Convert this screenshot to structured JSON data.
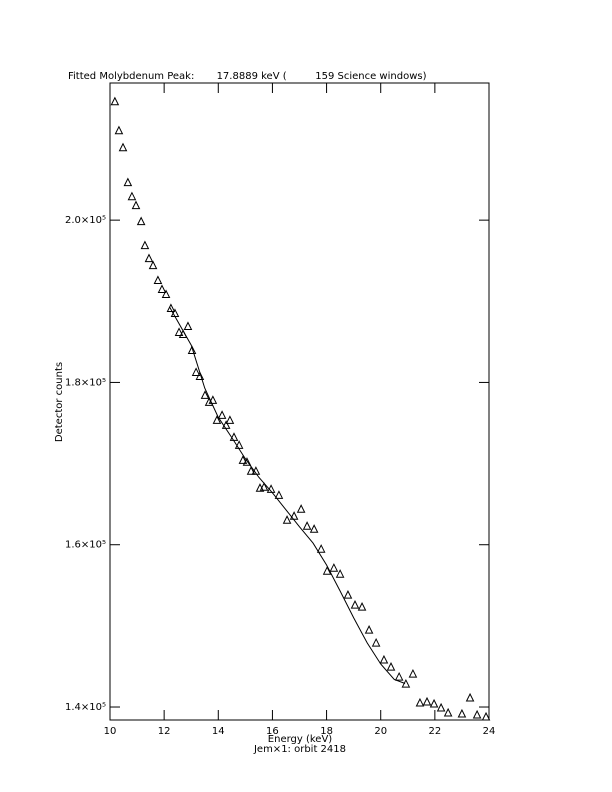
{
  "chart_data": {
    "type": "scatter",
    "title": "Fitted Molybdenum Peak:       17.8889 keV (         159 Science windows)",
    "x_label": "Energy (keV)",
    "y_label": "Detector counts",
    "footer": "Jem×1: orbit 2418",
    "xlim": [
      10,
      24
    ],
    "xticks": [
      10,
      12,
      14,
      16,
      18,
      20,
      22,
      24
    ],
    "ylim": [
      138400,
      216900
    ],
    "yticks": [
      {
        "value": 140000,
        "label": "1.4×10⁵"
      },
      {
        "value": 160000,
        "label": "1.6×10⁵"
      },
      {
        "value": 180000,
        "label": "1.8×10⁵"
      },
      {
        "value": 200000,
        "label": "2.0×10⁵"
      }
    ],
    "color": "#000000",
    "points": {
      "x": [
        10.18,
        10.33,
        10.48,
        10.66,
        10.81,
        10.96,
        11.15,
        11.29,
        11.44,
        11.59,
        11.77,
        11.92,
        12.07,
        12.25,
        12.4,
        12.55,
        12.7,
        12.88,
        13.03,
        13.18,
        13.32,
        13.51,
        13.66,
        13.8,
        13.95,
        14.14,
        14.29,
        14.43,
        14.58,
        14.77,
        14.91,
        15.06,
        15.21,
        15.39,
        15.54,
        15.69,
        15.95,
        16.24,
        16.54,
        16.8,
        17.06,
        17.28,
        17.54,
        17.8,
        18.02,
        18.27,
        18.5,
        18.79,
        19.05,
        19.31,
        19.57,
        19.83,
        20.12,
        20.38,
        20.68,
        20.93,
        21.19,
        21.45,
        21.71,
        21.97,
        22.23,
        22.49,
        23.0,
        23.3,
        23.56,
        23.89
      ],
      "y": [
        214650,
        211080,
        208980,
        204680,
        202950,
        201850,
        199880,
        196920,
        195320,
        194460,
        192620,
        191510,
        190890,
        189170,
        188550,
        186220,
        185970,
        186950,
        184000,
        181290,
        180800,
        178460,
        177600,
        177850,
        175380,
        176000,
        174770,
        175380,
        173290,
        172310,
        170460,
        170220,
        169110,
        169110,
        167020,
        167140,
        166890,
        166150,
        163080,
        163570,
        164430,
        162340,
        161970,
        159510,
        156800,
        157170,
        156430,
        153850,
        152620,
        152370,
        149540,
        147940,
        145850,
        144980,
        143750,
        142890,
        144120,
        140550,
        140680,
        140430,
        139940,
        139320,
        139200,
        141170,
        139080,
        138830
      ]
    },
    "fit": {
      "x": [
        12.2,
        13.0,
        13.5,
        14.0,
        14.5,
        15.0,
        15.5,
        16.0,
        16.5,
        17.0,
        17.5,
        18.0,
        18.5,
        19.0,
        19.5,
        20.0,
        20.5,
        20.9
      ],
      "y": [
        189300,
        184600,
        179300,
        175700,
        173200,
        170600,
        168300,
        166400,
        164300,
        162200,
        160200,
        157500,
        154300,
        151000,
        147900,
        145300,
        143400,
        142900
      ]
    }
  }
}
